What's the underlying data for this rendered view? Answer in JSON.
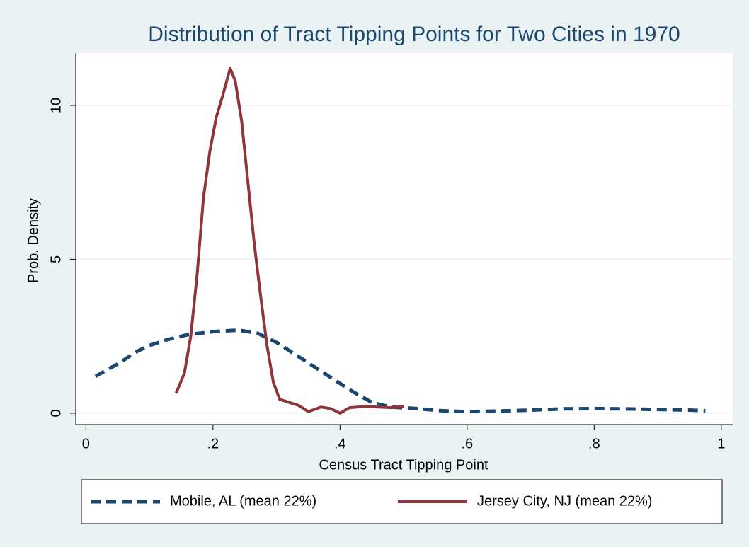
{
  "chart_data": {
    "type": "line",
    "title": "Distribution of Tract Tipping Points for Two Cities in 1970",
    "x_label": "Census Tract Tipping Point",
    "y_label": "Prob. Density",
    "series": [
      {
        "name": "Mobile, AL (mean 22%)",
        "color": "#1a476f",
        "dash": true,
        "x": [
          0.015,
          0.05,
          0.08,
          0.1,
          0.13,
          0.16,
          0.2,
          0.24,
          0.27,
          0.3,
          0.33,
          0.36,
          0.39,
          0.42,
          0.45,
          0.48,
          0.52,
          0.56,
          0.6,
          0.65,
          0.7,
          0.75,
          0.8,
          0.85,
          0.9,
          0.95,
          0.975
        ],
        "values": [
          1.2,
          1.6,
          2.0,
          2.2,
          2.4,
          2.55,
          2.65,
          2.7,
          2.6,
          2.3,
          1.9,
          1.5,
          1.1,
          0.7,
          0.35,
          0.2,
          0.15,
          0.08,
          0.05,
          0.07,
          0.1,
          0.14,
          0.15,
          0.14,
          0.12,
          0.1,
          0.08
        ]
      },
      {
        "name": "Jersey City, NJ (mean 22%)",
        "color": "#90353b",
        "dash": false,
        "x": [
          0.142,
          0.155,
          0.165,
          0.175,
          0.185,
          0.195,
          0.205,
          0.215,
          0.227,
          0.235,
          0.245,
          0.255,
          0.265,
          0.275,
          0.285,
          0.295,
          0.305,
          0.32,
          0.335,
          0.35,
          0.37,
          0.385,
          0.4,
          0.415,
          0.44,
          0.46,
          0.48,
          0.5
        ],
        "values": [
          0.65,
          1.3,
          2.5,
          4.5,
          7,
          8.5,
          9.6,
          10.3,
          11.2,
          10.8,
          9.5,
          7.5,
          5.5,
          3.8,
          2.2,
          1.0,
          0.45,
          0.35,
          0.25,
          0.05,
          0.2,
          0.15,
          0.0,
          0.18,
          0.22,
          0.2,
          0.18,
          0.22
        ]
      }
    ],
    "xlim": [
      -0.016,
      1.018
    ],
    "xticks": [
      0,
      {
        "value": 0.2,
        "label": ".2"
      },
      {
        "value": 0.4,
        "label": ".4"
      },
      {
        "value": 0.6,
        "label": ".6"
      },
      {
        "value": 0.8,
        "label": ".8"
      },
      1
    ],
    "ylim": [
      -0.37,
      11.7
    ],
    "yticks": [
      0,
      5,
      10
    ],
    "grid": true,
    "legend": "bottom"
  }
}
